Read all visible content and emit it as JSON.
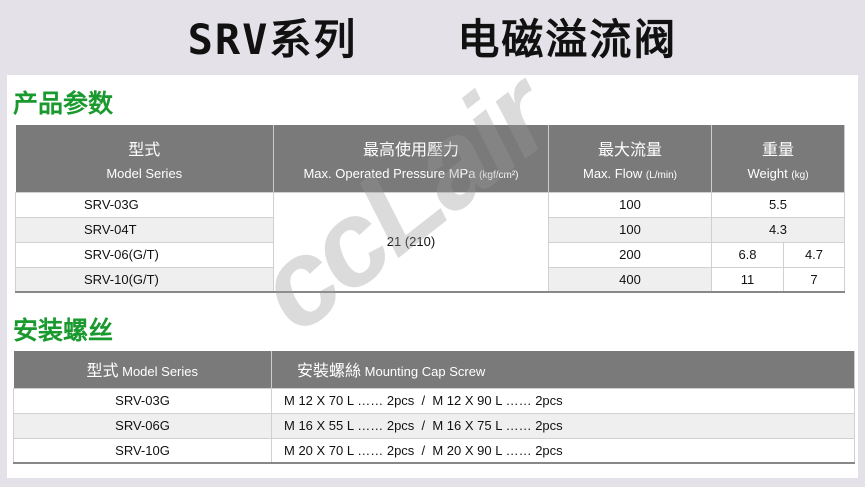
{
  "title": {
    "left": "SRV系列",
    "right": "电磁溢流阀"
  },
  "spec": {
    "heading": "产品参数",
    "headers": [
      {
        "cn": "型式",
        "en": "Model Series",
        "unit": ""
      },
      {
        "cn": "最高使用壓力",
        "en": "Max. Operated Pressure MPa",
        "unit": "(kgf/cm²)"
      },
      {
        "cn": "最大流量",
        "en": "Max. Flow",
        "unit": "(L/min)"
      },
      {
        "cn": "重量",
        "en": "Weight",
        "unit": "(kg)"
      }
    ],
    "pressure": "21 (210)",
    "rows": [
      {
        "model": "SRV-03G",
        "flow": "100",
        "weight": [
          "5.5"
        ]
      },
      {
        "model": "SRV-04T",
        "flow": "100",
        "weight": [
          "4.3"
        ]
      },
      {
        "model": "SRV-06(G/T)",
        "flow": "200",
        "weight": [
          "6.8",
          "4.7"
        ]
      },
      {
        "model": "SRV-10(G/T)",
        "flow": "400",
        "weight": [
          "11",
          "7"
        ]
      }
    ]
  },
  "screws": {
    "heading": "安装螺丝",
    "headers": [
      {
        "cn": "型式",
        "en": "Model Series"
      },
      {
        "cn": "安裝螺絲",
        "en": "Mounting Cap Screw"
      }
    ],
    "rows": [
      {
        "model": "SRV-03G",
        "screw": "M 12 X 70 L …… 2pcs  /  M 12 X 90 L …… 2pcs"
      },
      {
        "model": "SRV-06G",
        "screw": "M 16 X 55 L …… 2pcs  /  M 16 X 75 L …… 2pcs"
      },
      {
        "model": "SRV-10G",
        "screw": "M 20 X 70 L …… 2pcs  /  M 20 X 90 L …… 2pcs"
      }
    ]
  },
  "watermark": "ccLair"
}
